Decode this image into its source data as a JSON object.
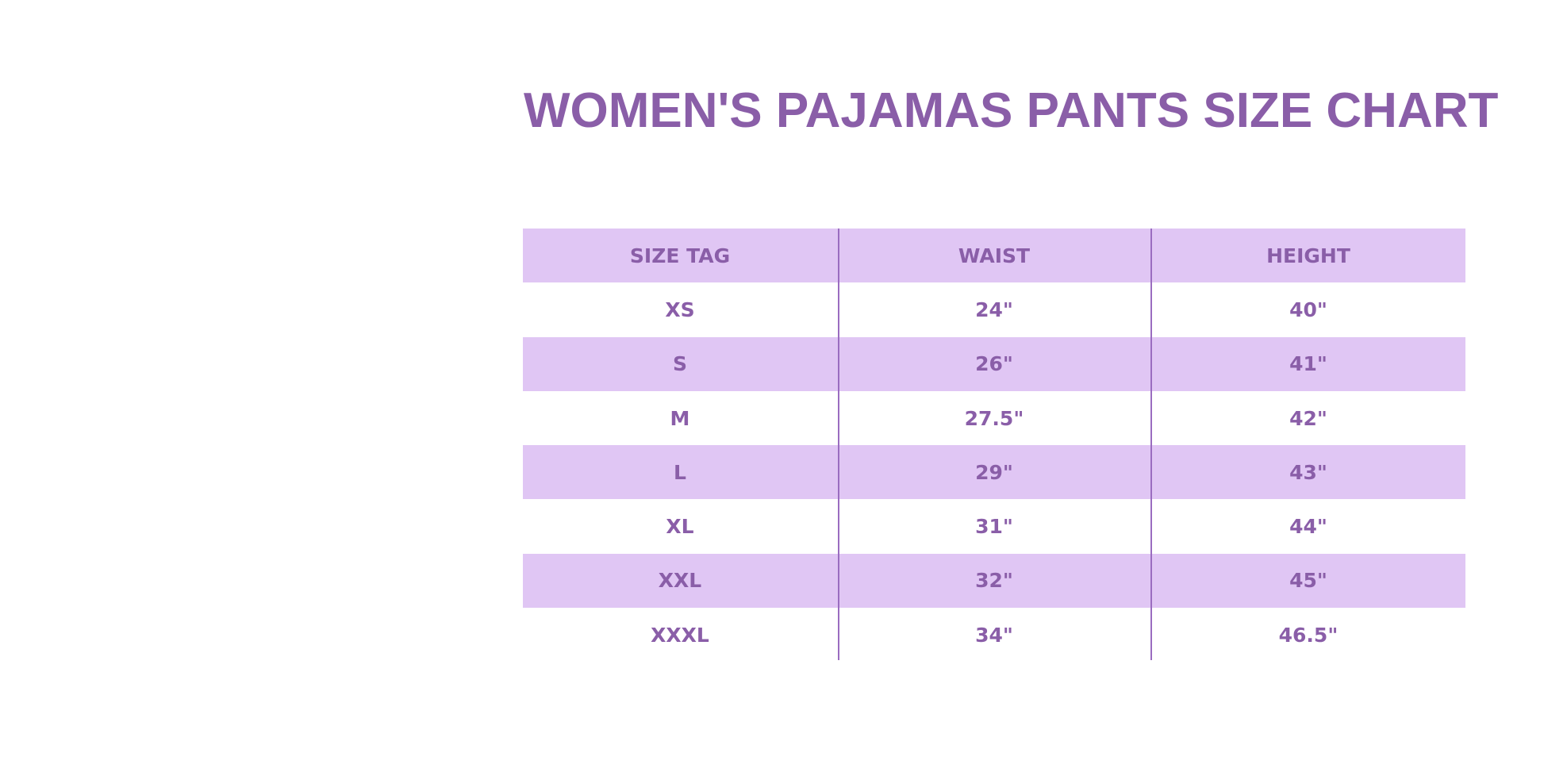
{
  "title": "WOMEN'S PAJAMAS PANTS SIZE CHART",
  "colors": {
    "text": "#8a5ea8",
    "band": "#e0c6f4",
    "divider": "#9a6cc0"
  },
  "table": {
    "headers": [
      "SIZE TAG",
      "WAIST",
      "HEIGHT"
    ],
    "rows": [
      [
        "XS",
        "24\"",
        "40\""
      ],
      [
        "S",
        "26\"",
        "41\""
      ],
      [
        "M",
        "27.5\"",
        "42\""
      ],
      [
        "L",
        "29\"",
        "43\""
      ],
      [
        "XL",
        "31\"",
        "44\""
      ],
      [
        "XXL",
        "32\"",
        "45\""
      ],
      [
        "XXXL",
        "34\"",
        "46.5\""
      ]
    ]
  }
}
